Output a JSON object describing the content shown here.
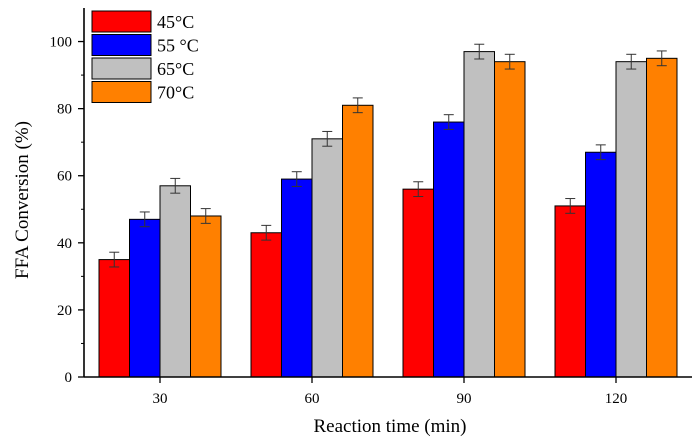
{
  "chart_data": {
    "type": "bar",
    "categories": [
      "30",
      "60",
      "90",
      "120"
    ],
    "series": [
      {
        "name": "45°C",
        "color": "#ff0000",
        "values": [
          35,
          43,
          56,
          51
        ],
        "errors": [
          2.2,
          2.2,
          2.2,
          2.2
        ]
      },
      {
        "name": "55 °C",
        "color": "#0000ff",
        "values": [
          47,
          59,
          76,
          67
        ],
        "errors": [
          2.2,
          2.2,
          2.2,
          2.2
        ]
      },
      {
        "name": "65°C",
        "color": "#c0c0c0",
        "values": [
          57,
          71,
          97,
          94
        ],
        "errors": [
          2.2,
          2.2,
          2.2,
          2.2
        ]
      },
      {
        "name": "70°C",
        "color": "#ff8000",
        "values": [
          48,
          81,
          94,
          95
        ],
        "errors": [
          2.2,
          2.2,
          2.2,
          2.2
        ]
      }
    ],
    "xlabel": "Reaction time (min)",
    "ylabel": "FFA Conversion (%)",
    "ylim": [
      0,
      110
    ],
    "yticks": [
      0,
      20,
      40,
      60,
      80,
      100
    ],
    "grid": false,
    "legend": "top-left"
  }
}
